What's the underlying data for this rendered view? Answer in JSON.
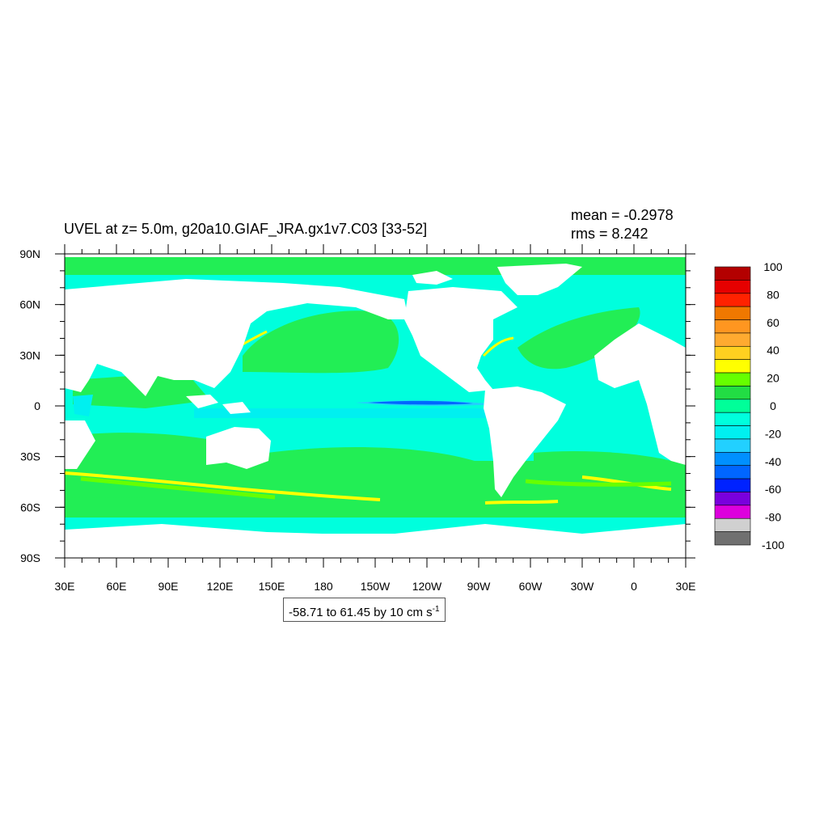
{
  "title": "UVEL at z=   5.0m, g20a10.GIAF_JRA.gx1v7.C03 [33-52]",
  "stats": {
    "mean": "mean = -0.2978",
    "rms": "rms = 8.242"
  },
  "contour_info": {
    "text": "-58.71 to 61.45 by 10 cm s",
    "unit_exponent": "-1"
  },
  "lat_labels": [
    "90N",
    "60N",
    "30N",
    "0",
    "30S",
    "60S",
    "90S"
  ],
  "lon_labels": [
    "30E",
    "60E",
    "90E",
    "120E",
    "150E",
    "180",
    "150W",
    "120W",
    "90W",
    "60W",
    "30W",
    "0",
    "30E"
  ],
  "colorbar": {
    "labels": [
      "100",
      "80",
      "60",
      "40",
      "20",
      "0",
      "-20",
      "-40",
      "-60",
      "-80",
      "-100"
    ],
    "colors": [
      "#b30000",
      "#e60000",
      "#ff2200",
      "#f07800",
      "#ff9620",
      "#ffaa30",
      "#ffd020",
      "#ffff00",
      "#66ff00",
      "#22dd44",
      "#00ff99",
      "#00ffdd",
      "#00f0f0",
      "#22d0ff",
      "#0090ff",
      "#0066ff",
      "#0022ff",
      "#7a00dd",
      "#dd00dd",
      "#d0d0d0",
      "#707070"
    ]
  },
  "chart_data": {
    "type": "heatmap",
    "title": "UVEL at z=   5.0m, g20a10.GIAF_JRA.gx1v7.C03 [33-52]",
    "variable": "UVEL",
    "depth": "5.0m",
    "mean": -0.2978,
    "rms": 8.242,
    "contour_min": -58.71,
    "contour_max": 61.45,
    "contour_interval": 10,
    "units": "cm s-1",
    "lon_range": [
      30,
      390
    ],
    "lat_range": [
      -90,
      90
    ],
    "colorbar_range": [
      -100,
      100
    ],
    "colorbar_ticks": [
      100,
      80,
      60,
      40,
      20,
      0,
      -20,
      -40,
      -60,
      -80,
      -100
    ]
  }
}
